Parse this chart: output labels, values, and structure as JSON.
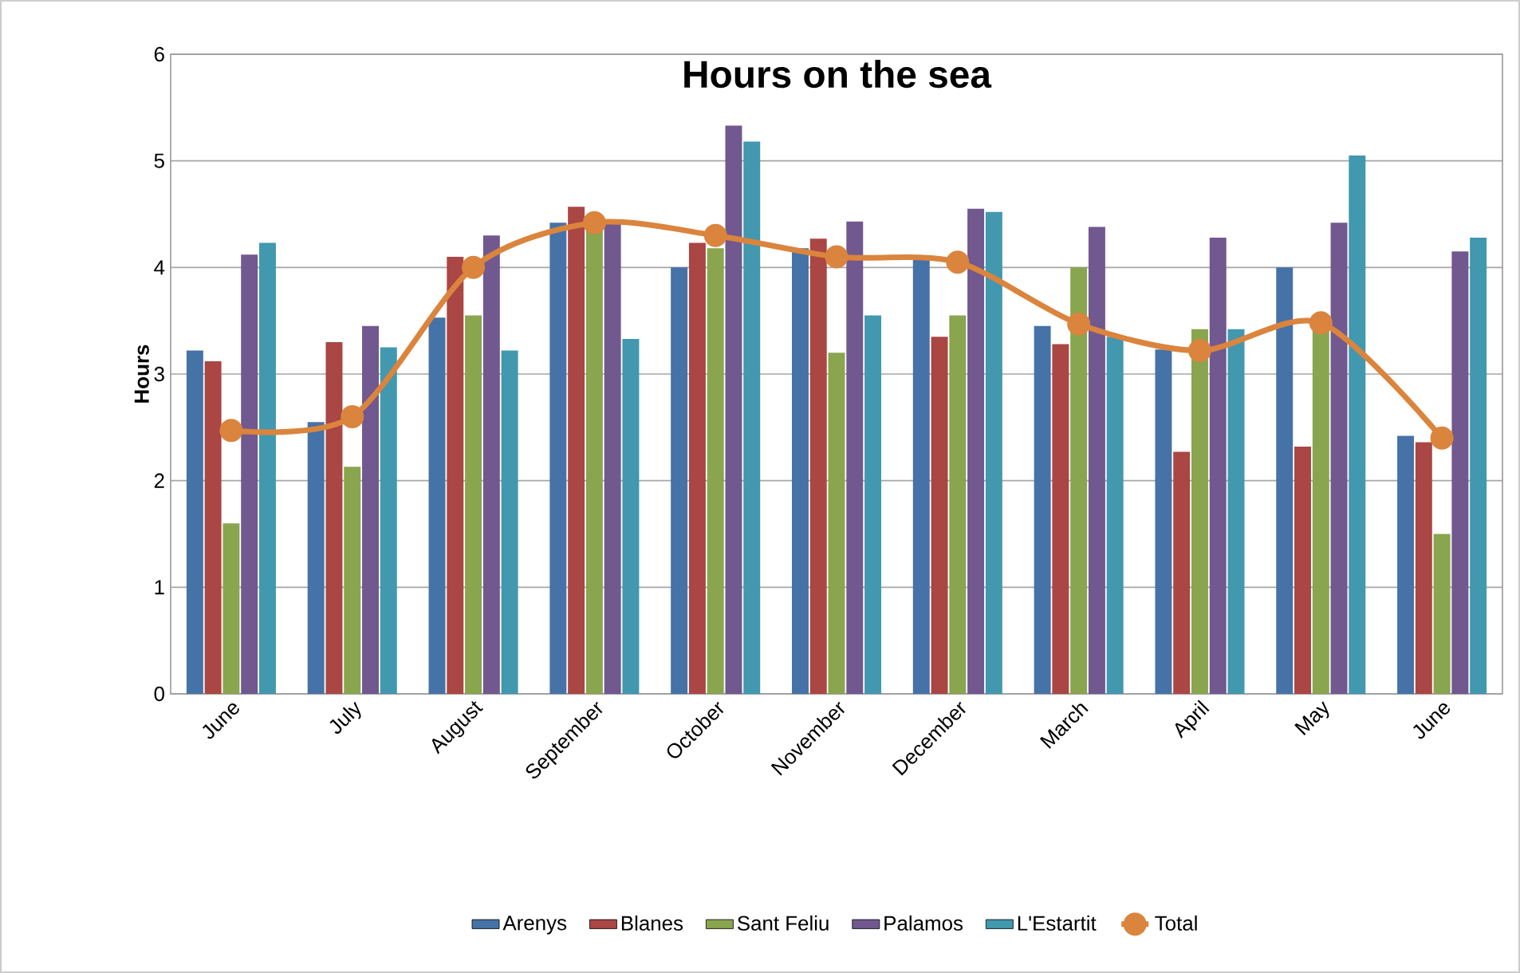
{
  "chart_data": {
    "type": "bar",
    "title": "Hours on the sea",
    "ylabel": "Hours",
    "categories": [
      "June",
      "July",
      "August",
      "September",
      "October",
      "November",
      "December",
      "March",
      "April",
      "May",
      "June"
    ],
    "series": [
      {
        "name": "Arenys",
        "color": "#4572a7",
        "values": [
          3.22,
          2.55,
          3.53,
          4.42,
          4.0,
          4.18,
          4.08,
          3.45,
          3.23,
          4.0,
          2.42
        ]
      },
      {
        "name": "Blanes",
        "color": "#aa4643",
        "values": [
          3.12,
          3.3,
          4.1,
          4.57,
          4.23,
          4.27,
          3.35,
          3.28,
          2.27,
          2.32,
          2.36
        ]
      },
      {
        "name": "Sant Feliu",
        "color": "#89a54e",
        "values": [
          1.6,
          2.13,
          3.55,
          4.35,
          4.18,
          3.2,
          3.55,
          4.0,
          3.42,
          3.45,
          1.5
        ]
      },
      {
        "name": "Palamos",
        "color": "#71588f",
        "values": [
          4.12,
          3.45,
          4.3,
          4.45,
          5.33,
          4.43,
          4.55,
          4.38,
          4.28,
          4.42,
          4.15
        ]
      },
      {
        "name": "L'Estartit",
        "color": "#4198af",
        "values": [
          4.23,
          3.25,
          3.22,
          3.33,
          5.18,
          3.55,
          4.52,
          3.35,
          3.42,
          5.05,
          4.28
        ]
      },
      {
        "name": "Total",
        "type": "line",
        "color": "#db843d",
        "values": [
          2.47,
          2.6,
          4.0,
          4.42,
          4.3,
          4.1,
          4.05,
          3.47,
          3.22,
          3.48,
          2.4
        ]
      }
    ],
    "ylim": [
      0,
      6
    ],
    "yticks": [
      0,
      1,
      2,
      3,
      4,
      5,
      6
    ],
    "grid": "y",
    "legend": "bottom",
    "marker": "circle"
  }
}
